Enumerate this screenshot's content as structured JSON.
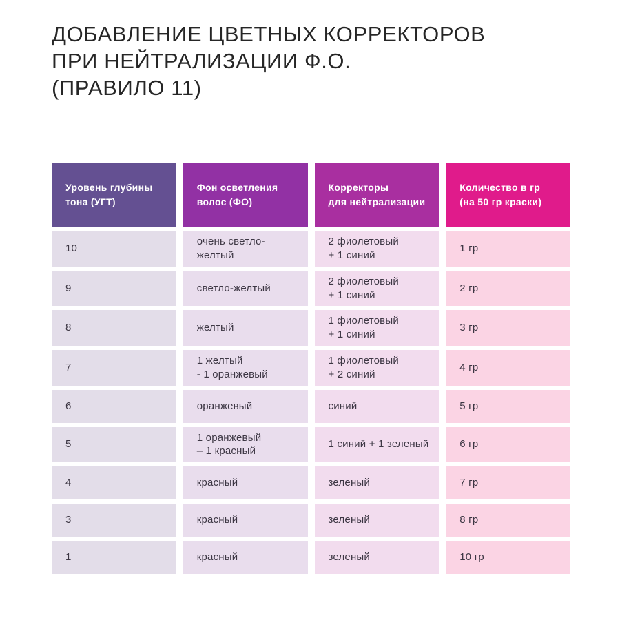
{
  "page": {
    "title": "ДОБАВЛЕНИЕ ЦВЕТНЫХ КОРРЕКТОРОВ\nПРИ НЕЙТРАЛИЗАЦИИ Ф.О.\n(ПРАВИЛО 11)"
  },
  "colors": {
    "page_background": "#ffffff",
    "title_text": "#262626",
    "header_text": "#ffffff",
    "body_text": "#3d3744",
    "header_backgrounds": [
      "#645092",
      "#9231a4",
      "#a92fa0",
      "#e01b8b"
    ],
    "cell_backgrounds": [
      "#e3dde9",
      "#e9dded",
      "#f2dcee",
      "#fbd4e4"
    ]
  },
  "table": {
    "columns": [
      {
        "label": "Уровень глубины\nтона (УГТ)"
      },
      {
        "label": "Фон осветления\nволос (ФО)"
      },
      {
        "label": "Корректоры\nдля нейтрализации"
      },
      {
        "label": "Количество в гр\n(на 50 гр краски)"
      }
    ],
    "rows": [
      {
        "ugt": "10",
        "fo": "очень светло-желтый",
        "correctors": "2 фиолетовый\n+ 1 синий",
        "amount": "1 гр"
      },
      {
        "ugt": "9",
        "fo": "светло-желтый",
        "correctors": "2 фиолетовый\n+ 1 синий",
        "amount": "2 гр"
      },
      {
        "ugt": "8",
        "fo": "желтый",
        "correctors": "1 фиолетовый\n+ 1 синий",
        "amount": "3 гр"
      },
      {
        "ugt": "7",
        "fo": "1 желтый\n- 1 оранжевый",
        "correctors": "1 фиолетовый\n+ 2 синий",
        "amount": "4 гр"
      },
      {
        "ugt": "6",
        "fo": "оранжевый",
        "correctors": "синий",
        "amount": "5 гр"
      },
      {
        "ugt": "5",
        "fo": "1 оранжевый\n– 1 красный",
        "correctors": "1 синий + 1 зеленый",
        "amount": "6 гр"
      },
      {
        "ugt": "4",
        "fo": "красный",
        "correctors": "зеленый",
        "amount": "7 гр"
      },
      {
        "ugt": "3",
        "fo": "красный",
        "correctors": "зеленый",
        "amount": "8 гр"
      },
      {
        "ugt": "1",
        "fo": "красный",
        "correctors": "зеленый",
        "amount": "10 гр"
      }
    ]
  }
}
